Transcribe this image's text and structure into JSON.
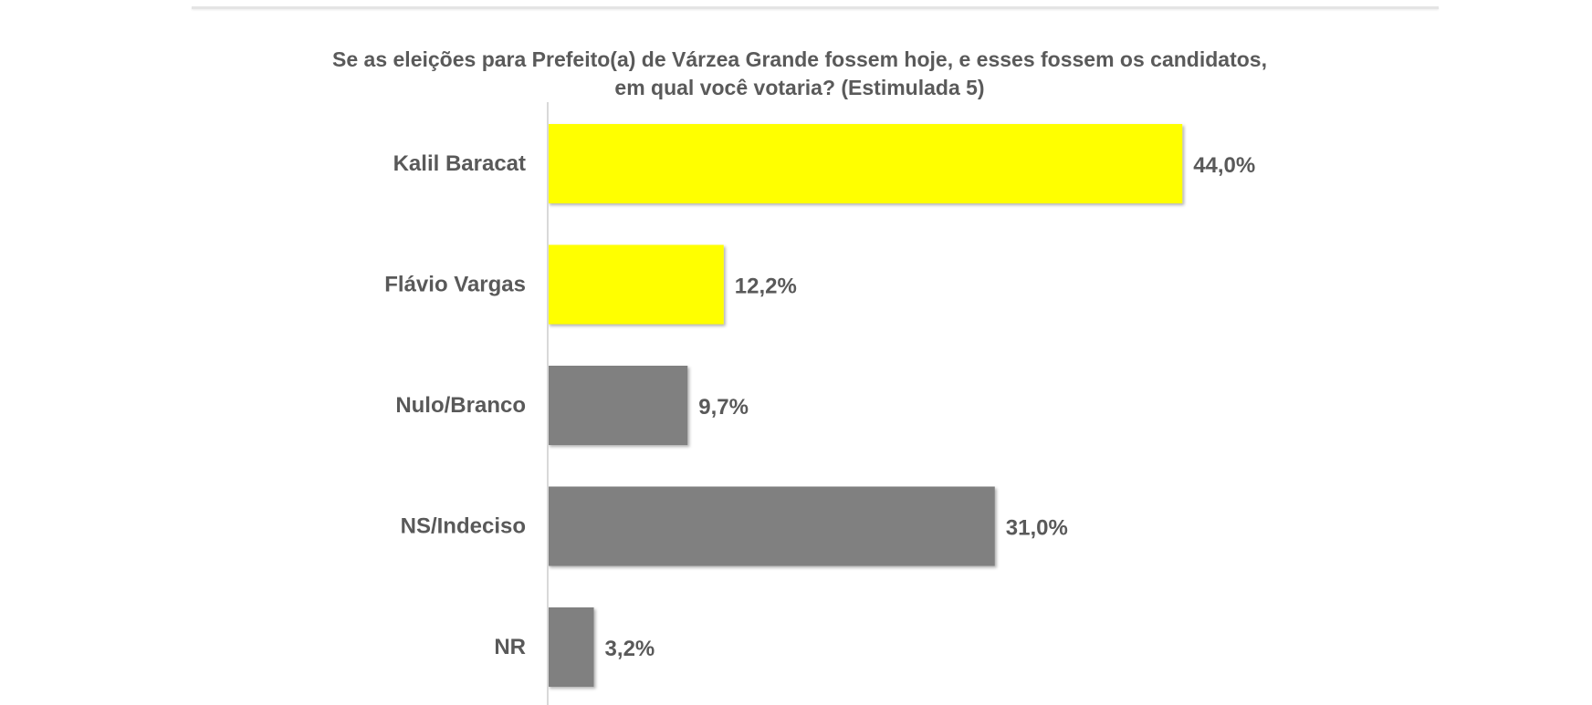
{
  "chart_data": {
    "type": "bar",
    "orientation": "horizontal",
    "title": "Se as eleições para Prefeito(a) de Várzea Grande fossem hoje, e esses fossem os candidatos,",
    "subtitle": "em qual você votaria? (Estimulada 5)",
    "categories": [
      "Kalil Baracat",
      "Flávio Vargas",
      "Nulo/Branco",
      "NS/Indeciso",
      "NR"
    ],
    "values": [
      44.0,
      12.2,
      9.7,
      31.0,
      3.2
    ],
    "value_labels": [
      "44,0%",
      "12,2%",
      "9,7%",
      "31,0%",
      "3,2%"
    ],
    "bar_colors": [
      "#ffff00",
      "#ffff00",
      "#808080",
      "#808080",
      "#808080"
    ],
    "xlim": [
      0,
      50
    ],
    "grid": false,
    "legend": "none"
  }
}
